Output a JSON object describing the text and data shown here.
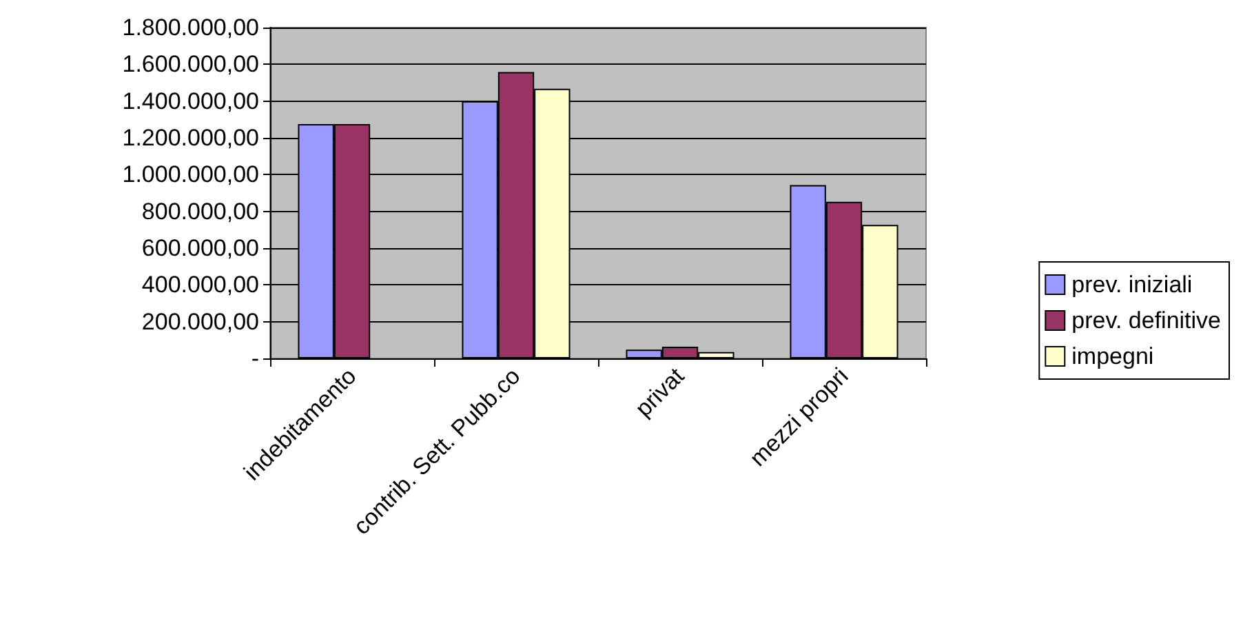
{
  "chart_data": {
    "type": "bar",
    "categories": [
      "indebitamento",
      "contrib. Sett. Pubb.co",
      "privat",
      "mezzi propri"
    ],
    "series": [
      {
        "name": "prev. iniziali",
        "color": "#9999ff",
        "values": [
          1275000,
          1400000,
          48000,
          943000
        ]
      },
      {
        "name": "prev. definitive",
        "color": "#993366",
        "values": [
          1275000,
          1558000,
          64000,
          852000
        ]
      },
      {
        "name": "impegni",
        "color": "#ffffcc",
        "values": [
          null,
          1467000,
          35000,
          727000
        ]
      }
    ],
    "ylim": [
      0,
      1800000
    ],
    "yticks": [
      {
        "value": 0,
        "label": "-"
      },
      {
        "value": 200000,
        "label": "200.000,00"
      },
      {
        "value": 400000,
        "label": "400.000,00"
      },
      {
        "value": 600000,
        "label": "600.000,00"
      },
      {
        "value": 800000,
        "label": "800.000,00"
      },
      {
        "value": 1000000,
        "label": "1.000.000,00"
      },
      {
        "value": 1200000,
        "label": "1.200.000,00"
      },
      {
        "value": 1400000,
        "label": "1.400.000,00"
      },
      {
        "value": 1600000,
        "label": "1.600.000,00"
      },
      {
        "value": 1800000,
        "label": "1.800.000,00"
      }
    ],
    "grid": "y",
    "legend": "right"
  }
}
